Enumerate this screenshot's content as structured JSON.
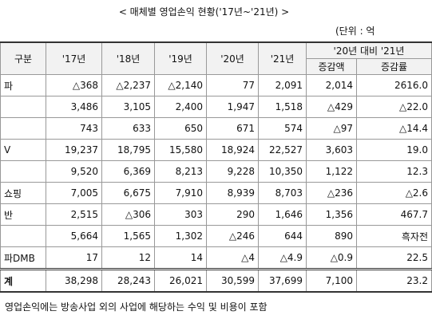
{
  "title": "< 매체별 영업손익 현황('17년~'21년) >",
  "unit": "(단위 : 억",
  "table": {
    "header": [
      "구분",
      "'17년",
      "'18년",
      "'19년",
      "'20년",
      "'21년"
    ],
    "group_header": "'20년 대비 '21년",
    "sub_header": [
      "증감액",
      "증감률"
    ],
    "rows": [
      {
        "label": "파",
        "cells": [
          "△368",
          "△2,237",
          "△2,140",
          "77",
          "2,091",
          "2,014",
          "2616.0"
        ]
      },
      {
        "label": "",
        "cells": [
          "3,486",
          "3,105",
          "2,400",
          "1,947",
          "1,518",
          "△429",
          "△22.0"
        ]
      },
      {
        "label": "",
        "cells": [
          "743",
          "633",
          "650",
          "671",
          "574",
          "△97",
          "△14.4"
        ]
      },
      {
        "label": "V",
        "cells": [
          "19,237",
          "18,795",
          "15,580",
          "18,924",
          "22,527",
          "3,603",
          "19.0"
        ]
      },
      {
        "label": "",
        "cells": [
          "9,520",
          "6,369",
          "8,213",
          "9,228",
          "10,350",
          "1,122",
          "12.3"
        ]
      },
      {
        "label": "쇼핑",
        "cells": [
          "7,005",
          "6,675",
          "7,910",
          "8,939",
          "8,703",
          "△236",
          "△2.6"
        ]
      },
      {
        "label": "반",
        "cells": [
          "2,515",
          "△306",
          "303",
          "290",
          "1,646",
          "1,356",
          "467.7"
        ]
      },
      {
        "label": "",
        "cells": [
          "5,664",
          "1,565",
          "1,302",
          "△246",
          "644",
          "890",
          "흑자전"
        ]
      },
      {
        "label": "파DMB",
        "cells": [
          "17",
          "12",
          "14",
          "△4",
          "△4.9",
          "△0.9",
          "22.5"
        ]
      },
      {
        "label": "계",
        "cells": [
          "38,298",
          "28,243",
          "26,021",
          "30,599",
          "37,699",
          "7,100",
          "23.2"
        ]
      }
    ]
  },
  "footnote": "영업손익에는 방송사업 외의 사업에 해당하는 수익 및 비용이 포함"
}
